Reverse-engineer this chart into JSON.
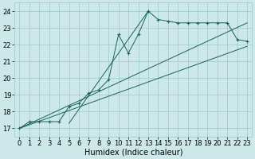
{
  "bg_color": "#cce8e8",
  "grid_color": "#9dc8c8",
  "line_color": "#1a6060",
  "xlabel": "Humidex (Indice chaleur)",
  "xlabel_fontsize": 7,
  "tick_fontsize": 6,
  "xlim": [
    -0.5,
    23.5
  ],
  "ylim": [
    16.5,
    24.5
  ],
  "yticks": [
    17,
    18,
    19,
    20,
    21,
    22,
    23,
    24
  ],
  "xticks": [
    0,
    1,
    2,
    3,
    4,
    5,
    6,
    7,
    8,
    9,
    10,
    11,
    12,
    13,
    14,
    15,
    16,
    17,
    18,
    19,
    20,
    21,
    22,
    23
  ],
  "series_x": [
    0,
    1,
    2,
    3,
    4,
    5,
    6,
    7,
    8,
    9,
    10,
    11,
    12,
    13,
    14,
    15,
    16,
    17,
    18,
    19,
    20,
    21,
    22,
    23
  ],
  "series_y": [
    17.0,
    17.4,
    17.4,
    17.4,
    17.4,
    18.3,
    18.5,
    19.1,
    19.3,
    19.9,
    22.6,
    21.5,
    22.6,
    24.0,
    23.5,
    23.4,
    23.3,
    23.3,
    23.3,
    23.3,
    23.3,
    23.3,
    22.3,
    22.2
  ],
  "line1_x": [
    0,
    23
  ],
  "line1_y": [
    17.0,
    23.3
  ],
  "line2_x": [
    0,
    23
  ],
  "line2_y": [
    17.0,
    21.9
  ],
  "line3_x": [
    5,
    13
  ],
  "line3_y": [
    17.3,
    24.0
  ]
}
